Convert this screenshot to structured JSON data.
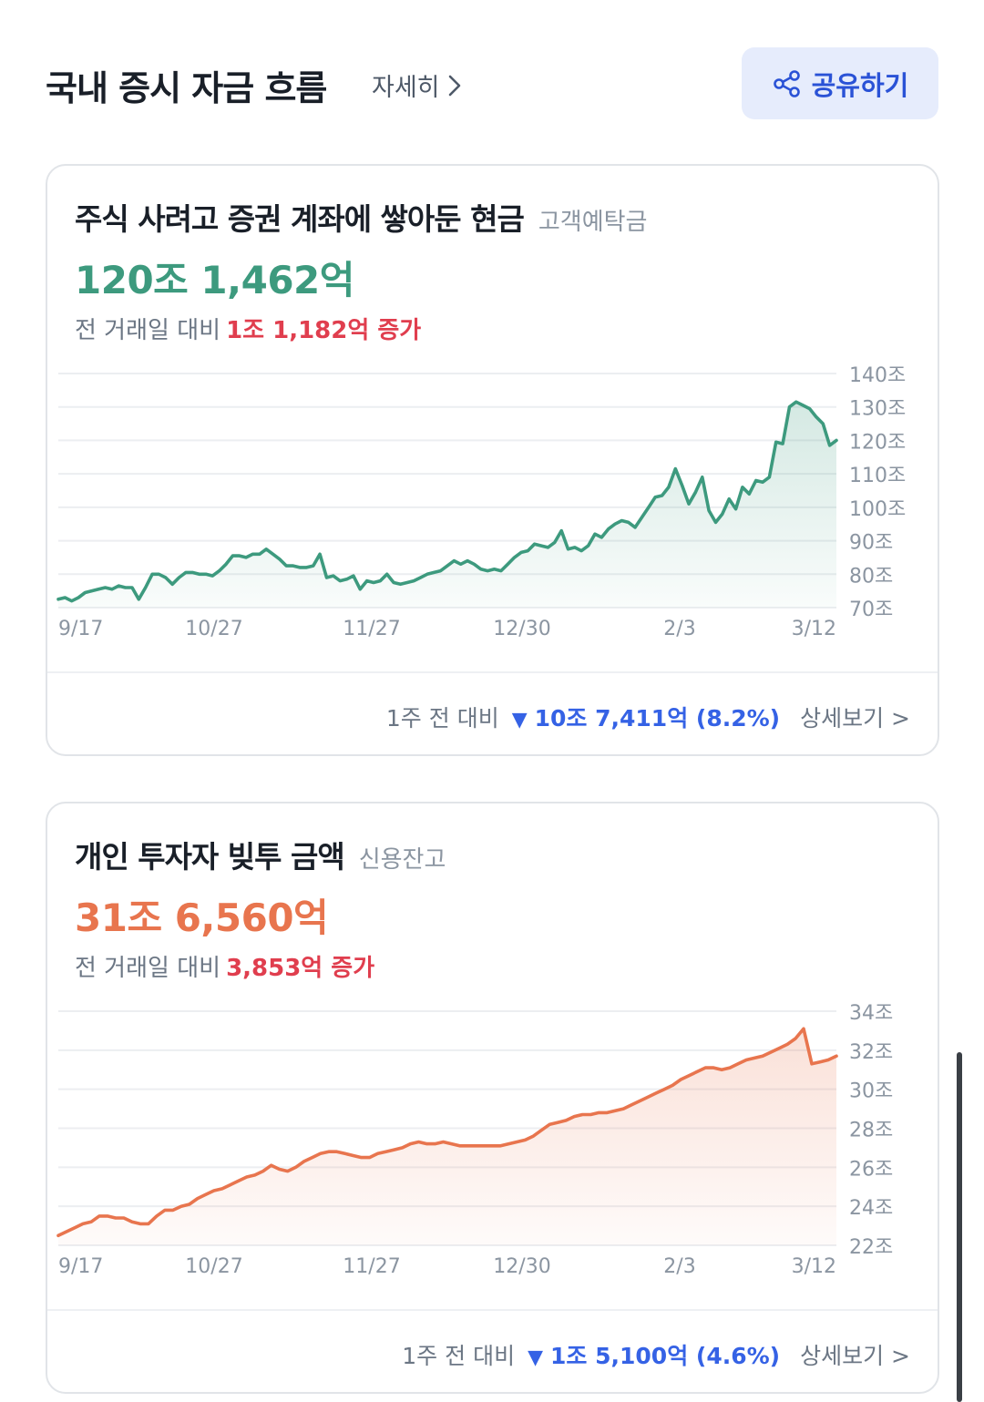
{
  "header": {
    "title": "국내 증시 자금 흐름",
    "detail_label": "자세히",
    "share_label": "공유하기"
  },
  "cards": [
    {
      "title": "주식 사려고 증권 계좌에 쌓아둔 현금",
      "subtitle": "고객예탁금",
      "value": "120조 1,462억",
      "change_prefix": "전 거래일 대비",
      "change_value": "1조 1,182억 증가",
      "week_prefix": "1주 전 대비",
      "week_change": "10조 7,411억 (8.2%)",
      "more_label": "상세보기 >",
      "color": "#3d9a7e"
    },
    {
      "title": "개인 투자자 빚투 금액",
      "subtitle": "신용잔고",
      "value": "31조 6,560억",
      "change_prefix": "전 거래일 대비",
      "change_value": "3,853억 증가",
      "week_prefix": "1주 전 대비",
      "week_change": "1조 5,100억 (4.6%)",
      "more_label": "상세보기 >",
      "color": "#e8754e"
    }
  ],
  "chart_data": [
    {
      "type": "area",
      "title": "고객예탁금",
      "x_tick_labels": [
        "9/17",
        "10/27",
        "11/27",
        "12/30",
        "2/3",
        "3/12"
      ],
      "y_tick_labels": [
        "140조",
        "130조",
        "120조",
        "110조",
        "100조",
        "90조",
        "80조",
        "70조"
      ],
      "ylim": [
        70,
        140
      ],
      "unit": "조",
      "series": [
        {
          "name": "고객예탁금",
          "values": [
            72.5,
            73,
            72,
            73,
            74.5,
            75,
            75.5,
            76,
            75.5,
            76.5,
            76,
            76,
            72.5,
            76,
            80,
            80,
            79,
            77,
            79,
            80.5,
            80.5,
            80,
            80,
            79.5,
            81,
            83,
            85.5,
            85.5,
            85,
            86,
            86,
            87.5,
            86,
            84.5,
            82.5,
            82.5,
            82,
            82,
            82.5,
            86,
            79,
            79.5,
            78,
            78.5,
            79.5,
            75.5,
            78,
            77.5,
            78,
            80,
            77.5,
            77,
            77.5,
            78,
            79,
            80,
            80.5,
            81,
            82.5,
            84,
            83,
            84,
            83,
            81.5,
            81,
            81.5,
            81,
            83,
            85,
            86.5,
            87,
            89,
            88.5,
            88,
            89.5,
            93,
            87.5,
            88,
            87,
            88.5,
            92,
            91,
            93.5,
            95,
            96,
            95.5,
            94,
            97,
            100,
            103,
            103.5,
            106,
            111.5,
            106.5,
            101,
            104.5,
            109,
            99,
            95.5,
            98,
            102.5,
            99.5,
            106,
            104,
            108,
            107.5,
            109,
            119.5,
            119,
            130,
            131.5,
            130.5,
            129.5,
            127,
            125,
            118.5,
            120
          ]
        }
      ]
    },
    {
      "type": "area",
      "title": "신용잔고",
      "x_tick_labels": [
        "9/17",
        "10/27",
        "11/27",
        "12/30",
        "2/3",
        "3/12"
      ],
      "y_tick_labels": [
        "34조",
        "32조",
        "30조",
        "28조",
        "26조",
        "24조",
        "22조"
      ],
      "ylim": [
        22,
        34
      ],
      "unit": "조",
      "series": [
        {
          "name": "신용잔고",
          "values": [
            22.5,
            22.7,
            22.9,
            23.1,
            23.2,
            23.5,
            23.5,
            23.4,
            23.4,
            23.2,
            23.1,
            23.1,
            23.5,
            23.8,
            23.8,
            24,
            24.1,
            24.4,
            24.6,
            24.8,
            24.9,
            25.1,
            25.3,
            25.5,
            25.6,
            25.8,
            26.1,
            25.9,
            25.8,
            26,
            26.3,
            26.5,
            26.7,
            26.8,
            26.8,
            26.7,
            26.6,
            26.5,
            26.5,
            26.7,
            26.8,
            26.9,
            27,
            27.2,
            27.3,
            27.2,
            27.2,
            27.3,
            27.2,
            27.1,
            27.1,
            27.1,
            27.1,
            27.1,
            27.1,
            27.2,
            27.3,
            27.4,
            27.6,
            27.9,
            28.2,
            28.3,
            28.4,
            28.6,
            28.7,
            28.7,
            28.8,
            28.8,
            28.9,
            29,
            29.2,
            29.4,
            29.6,
            29.8,
            30,
            30.2,
            30.5,
            30.7,
            30.9,
            31.1,
            31.1,
            31,
            31.1,
            31.3,
            31.5,
            31.6,
            31.7,
            31.9,
            32.1,
            32.3,
            32.6,
            33.1,
            31.3,
            31.4,
            31.5,
            31.7
          ]
        }
      ]
    }
  ]
}
